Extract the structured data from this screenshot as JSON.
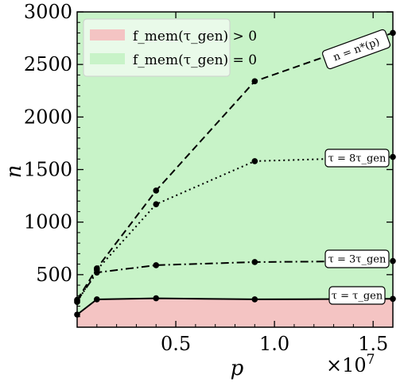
{
  "chart_data": {
    "type": "line",
    "xlabel": "p",
    "ylabel": "n",
    "x_offset_label": "×10",
    "x_offset_exponent": "7",
    "xlim": [
      0,
      16000000
    ],
    "ylim": [
      0,
      3000
    ],
    "x_ticks": [
      5000000,
      10000000,
      15000000
    ],
    "x_tick_labels": [
      "0.5",
      "1.0",
      "1.5"
    ],
    "y_ticks": [
      500,
      1000,
      1500,
      2000,
      2500,
      3000
    ],
    "y_tick_labels": [
      "500",
      "1000",
      "1500",
      "2000",
      "2500",
      "3000"
    ],
    "regions": [
      {
        "name": "f_mem(τ_gen) > 0",
        "color": "#f4c4c3",
        "boundary_series": 3
      },
      {
        "name": "f_mem(τ_gen) = 0",
        "color": "#c8f3c8"
      }
    ],
    "legend": {
      "placement": "top-left",
      "entries": [
        {
          "label": "f_mem(τ_gen) > 0",
          "color": "#f4c4c3"
        },
        {
          "label": "f_mem(τ_gen) = 0",
          "color": "#c8f3c8"
        }
      ]
    },
    "series": [
      {
        "label": "n = n*(p)",
        "style": "dashed",
        "x": [
          0,
          1000000,
          4000000,
          9000000,
          16000000
        ],
        "y": [
          260,
          560,
          1300,
          2340,
          2800
        ]
      },
      {
        "label": "τ = 8τ_gen",
        "style": "dotted",
        "x": [
          0,
          1000000,
          4000000,
          9000000,
          16000000
        ],
        "y": [
          240,
          545,
          1170,
          1580,
          1620
        ]
      },
      {
        "label": "τ = 3τ_gen",
        "style": "dashdot",
        "x": [
          0,
          1000000,
          4000000,
          9000000,
          16000000
        ],
        "y": [
          250,
          520,
          590,
          620,
          630
        ]
      },
      {
        "label": "τ = τ_gen",
        "style": "solid",
        "x": [
          0,
          1000000,
          4000000,
          9000000,
          16000000
        ],
        "y": [
          120,
          265,
          275,
          265,
          270
        ]
      }
    ],
    "grid": false,
    "colors": {
      "line": "#000000",
      "pink": "#f4c4c3",
      "green": "#c8f3c8"
    }
  }
}
